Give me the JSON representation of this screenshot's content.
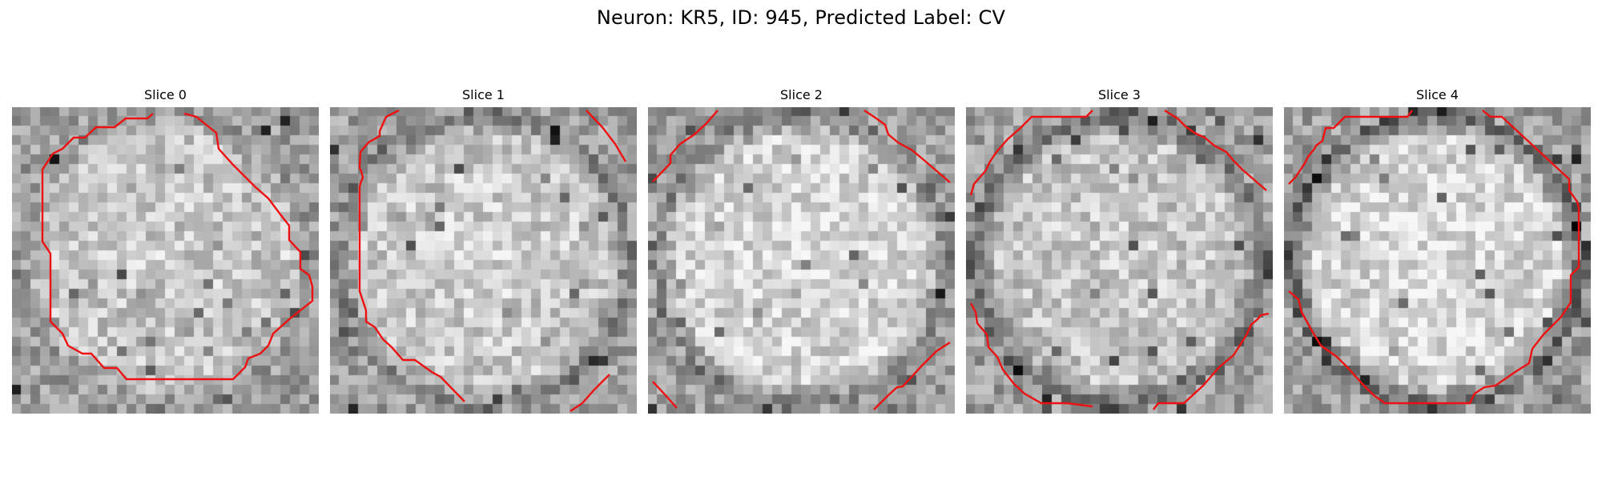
{
  "figure": {
    "title": "Neuron: KR5, ID: 945, Predicted Label: CV"
  },
  "grid": {
    "cols": 32,
    "rows": 32
  },
  "contour_color": "#ee1111",
  "slices": [
    {
      "label": "Slice 0",
      "seed": 11,
      "ring_dark": 0.55,
      "inner": 0.8
    },
    {
      "label": "Slice 1",
      "seed": 23,
      "ring_dark": 0.45,
      "inner": 0.82
    },
    {
      "label": "Slice 2",
      "seed": 37,
      "ring_dark": 0.45,
      "inner": 0.86
    },
    {
      "label": "Slice 3",
      "seed": 51,
      "ring_dark": 0.35,
      "inner": 0.8
    },
    {
      "label": "Slice 4",
      "seed": 67,
      "ring_dark": 0.3,
      "inner": 0.87
    }
  ]
}
